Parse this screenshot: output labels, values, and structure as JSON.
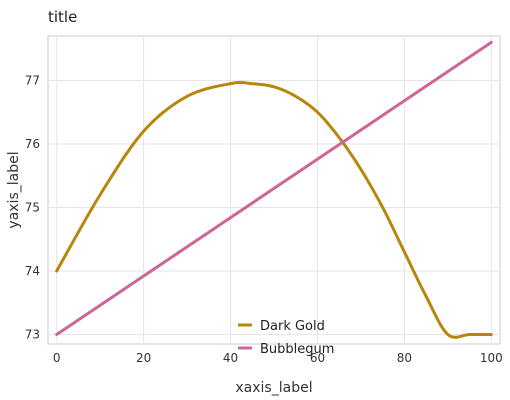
{
  "chart_data": {
    "type": "line",
    "title": "title",
    "xlabel": "xaxis_label",
    "ylabel": "yaxis_label",
    "xlim": [
      -2,
      102
    ],
    "ylim": [
      72.85,
      77.7
    ],
    "xticks": [
      0,
      20,
      40,
      60,
      80,
      100
    ],
    "yticks": [
      73,
      74,
      75,
      76,
      77
    ],
    "grid": true,
    "legend": "bottom-center",
    "series": [
      {
        "name": "Dark Gold",
        "color": "#b8860b",
        "x": [
          0,
          10,
          20,
          30,
          40,
          45,
          50,
          55,
          60,
          65,
          70,
          75,
          80,
          85,
          90,
          95,
          100
        ],
        "y": [
          74.0,
          75.2,
          76.2,
          76.75,
          76.95,
          76.95,
          76.9,
          76.75,
          76.5,
          76.1,
          75.6,
          75.0,
          74.3,
          73.6,
          73.0,
          73.0,
          73.0
        ]
      },
      {
        "name": "Bubblegum",
        "color": "#cc6699",
        "x": [
          0,
          100
        ],
        "y": [
          73.0,
          77.6
        ]
      }
    ]
  }
}
